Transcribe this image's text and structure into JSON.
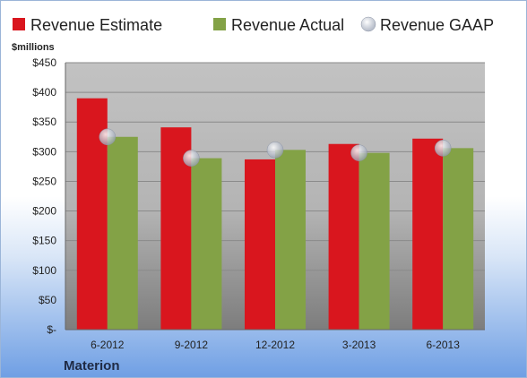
{
  "chart_data": {
    "type": "bar",
    "categories": [
      "6-2012",
      "9-2012",
      "12-2012",
      "3-2013",
      "6-2013"
    ],
    "series": [
      {
        "name": "Revenue Estimate",
        "values": [
          390,
          341,
          287,
          313,
          322
        ],
        "color": "#d9161e"
      },
      {
        "name": "Revenue Actual",
        "values": [
          325,
          289,
          303,
          298,
          306
        ],
        "color": "#83a246"
      },
      {
        "name": "Revenue GAAP",
        "values": [
          325,
          289,
          303,
          298,
          306
        ],
        "color": "#c8cedb",
        "marker": "circle"
      }
    ],
    "ylim": [
      0,
      450
    ],
    "yticks": [
      {
        "value": 0,
        "label": "$-"
      },
      {
        "value": 50,
        "label": "$50"
      },
      {
        "value": 100,
        "label": "$100"
      },
      {
        "value": 150,
        "label": "$150"
      },
      {
        "value": 200,
        "label": "$200"
      },
      {
        "value": 250,
        "label": "$250"
      },
      {
        "value": 300,
        "label": "$300"
      },
      {
        "value": 350,
        "label": "$350"
      },
      {
        "value": 400,
        "label": "$400"
      },
      {
        "value": 450,
        "label": "$450"
      }
    ],
    "unit_label": "$millions",
    "company": "Materion",
    "grid": true,
    "legend_position": "top"
  }
}
